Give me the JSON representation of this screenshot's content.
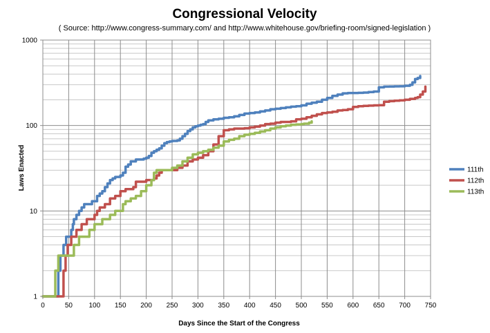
{
  "chart_data": {
    "type": "line",
    "title": "Congressional Velocity",
    "subtitle": "( Source: http://www.congress-summary.com/ and http://www.whitehouse.gov/briefing-room/signed-legislation )",
    "xlabel": "Days Since the Start of the Congress",
    "ylabel": "Laws Enacted",
    "xlim": [
      0,
      750
    ],
    "ylim": [
      1,
      1000
    ],
    "y_scale": "log",
    "grid": true,
    "legend": "right",
    "x_ticks": [
      "0",
      "50",
      "100",
      "150",
      "200",
      "250",
      "300",
      "350",
      "400",
      "450",
      "500",
      "550",
      "600",
      "650",
      "700",
      "750"
    ],
    "y_ticks": [
      "1",
      "10",
      "100",
      "1000"
    ],
    "series": [
      {
        "name": "111th",
        "color": "#4f81bd",
        "x": [
          0,
          28,
          30,
          32,
          34,
          38,
          40,
          42,
          45,
          48,
          50,
          55,
          58,
          60,
          65,
          70,
          75,
          80,
          85,
          90,
          95,
          100,
          105,
          110,
          115,
          120,
          125,
          130,
          135,
          140,
          145,
          150,
          155,
          160,
          165,
          170,
          175,
          180,
          185,
          190,
          195,
          200,
          205,
          210,
          215,
          220,
          225,
          230,
          235,
          240,
          245,
          250,
          255,
          260,
          265,
          270,
          275,
          280,
          285,
          290,
          295,
          300,
          305,
          310,
          315,
          320,
          330,
          340,
          350,
          360,
          370,
          380,
          390,
          400,
          410,
          420,
          430,
          440,
          450,
          460,
          470,
          480,
          490,
          500,
          510,
          520,
          530,
          540,
          550,
          560,
          570,
          580,
          590,
          600,
          610,
          620,
          630,
          640,
          650,
          660,
          670,
          680,
          690,
          700,
          710,
          715,
          720,
          725,
          730
        ],
        "y": [
          1,
          1,
          2,
          2,
          3,
          3,
          4,
          4,
          5,
          5,
          5,
          6,
          7,
          8,
          9,
          10,
          11,
          12,
          12,
          12,
          13,
          13,
          15,
          16,
          17,
          19,
          21,
          23,
          24,
          25,
          25,
          26,
          28,
          33,
          35,
          38,
          38,
          40,
          40,
          40,
          41,
          42,
          44,
          48,
          50,
          52,
          54,
          58,
          62,
          64,
          65,
          66,
          66,
          67,
          70,
          75,
          80,
          86,
          90,
          95,
          98,
          100,
          102,
          104,
          110,
          115,
          118,
          120,
          123,
          125,
          128,
          133,
          138,
          140,
          142,
          146,
          150,
          155,
          157,
          160,
          163,
          166,
          168,
          172,
          180,
          185,
          190,
          200,
          210,
          222,
          230,
          238,
          240,
          240,
          241,
          243,
          246,
          250,
          280,
          285,
          286,
          287,
          288,
          292,
          300,
          320,
          350,
          360,
          380
        ]
      },
      {
        "name": "112th",
        "color": "#c0504d",
        "x": [
          0,
          38,
          40,
          42,
          44,
          46,
          48,
          50,
          55,
          60,
          65,
          70,
          75,
          80,
          85,
          90,
          100,
          105,
          110,
          115,
          120,
          130,
          140,
          150,
          160,
          170,
          175,
          180,
          190,
          200,
          210,
          215,
          220,
          225,
          230,
          240,
          250,
          260,
          270,
          280,
          290,
          300,
          310,
          320,
          330,
          340,
          350,
          360,
          370,
          380,
          390,
          400,
          410,
          420,
          430,
          440,
          450,
          460,
          470,
          480,
          490,
          500,
          510,
          520,
          530,
          540,
          550,
          560,
          570,
          580,
          590,
          600,
          610,
          620,
          630,
          640,
          650,
          660,
          670,
          680,
          690,
          700,
          710,
          720,
          725,
          730,
          735,
          740
        ],
        "y": [
          1,
          1,
          2,
          2,
          3,
          3,
          4,
          4,
          5,
          5,
          6,
          6,
          7,
          7,
          8,
          8,
          9,
          10,
          11,
          11,
          12,
          14,
          15,
          17,
          18,
          18,
          19,
          22,
          22,
          23,
          23,
          24,
          26,
          28,
          30,
          30,
          30,
          32,
          34,
          38,
          40,
          42,
          45,
          50,
          60,
          75,
          88,
          90,
          92,
          92,
          93,
          95,
          97,
          100,
          104,
          105,
          108,
          110,
          110,
          112,
          118,
          120,
          125,
          130,
          135,
          140,
          142,
          145,
          150,
          152,
          155,
          165,
          168,
          170,
          171,
          172,
          173,
          190,
          193,
          195,
          197,
          200,
          205,
          210,
          215,
          230,
          250,
          285
        ]
      },
      {
        "name": "113th",
        "color": "#9bbb59",
        "x": [
          0,
          22,
          24,
          26,
          28,
          30,
          35,
          40,
          45,
          50,
          55,
          60,
          65,
          70,
          80,
          90,
          100,
          110,
          115,
          120,
          130,
          140,
          150,
          155,
          160,
          170,
          180,
          190,
          200,
          210,
          215,
          220,
          225,
          230,
          240,
          250,
          260,
          270,
          280,
          290,
          300,
          310,
          320,
          330,
          340,
          350,
          360,
          370,
          380,
          390,
          400,
          410,
          420,
          430,
          440,
          450,
          460,
          470,
          480,
          490,
          500,
          505,
          510,
          515,
          520
        ],
        "y": [
          1,
          1,
          2,
          2,
          2,
          3,
          3,
          3,
          3,
          3,
          3,
          4,
          4,
          5,
          5,
          6,
          7,
          7,
          8,
          8,
          9,
          10,
          10,
          12,
          13,
          14,
          15,
          17,
          20,
          23,
          28,
          30,
          30,
          30,
          30,
          32,
          34,
          38,
          42,
          46,
          48,
          50,
          52,
          55,
          58,
          65,
          68,
          70,
          75,
          78,
          80,
          82,
          85,
          88,
          92,
          95,
          98,
          100,
          102,
          103,
          104,
          105,
          105,
          108,
          112
        ]
      }
    ]
  }
}
